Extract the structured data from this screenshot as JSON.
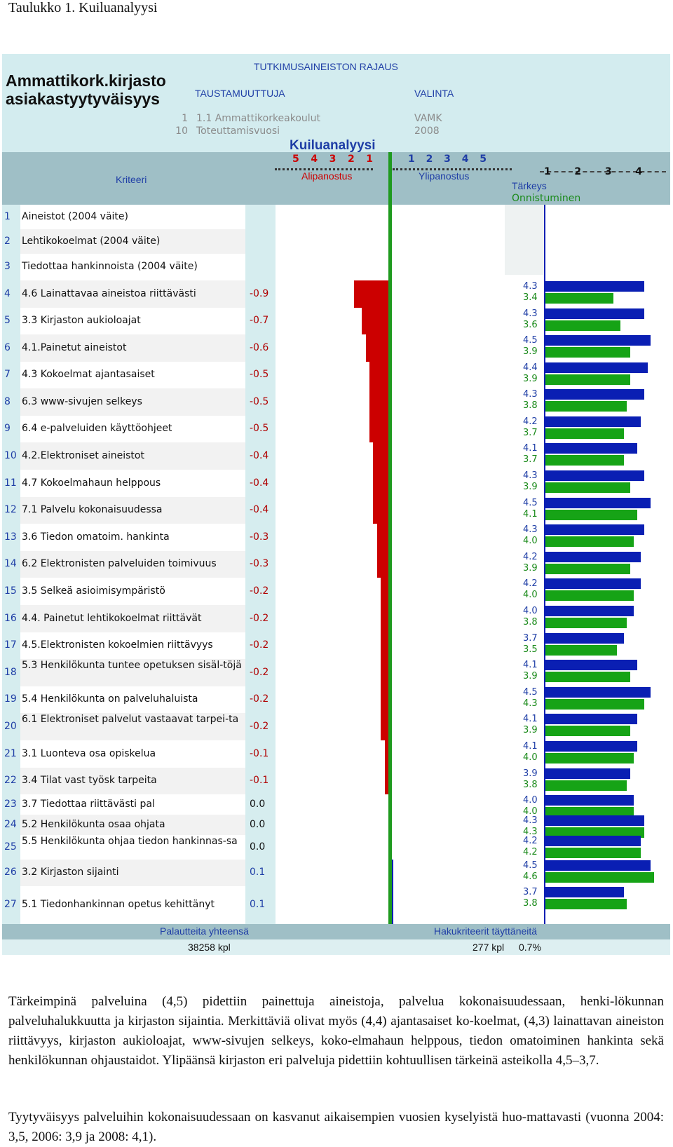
{
  "caption": "Taulukko 1. Kuiluanalyysi",
  "header": {
    "title_line1": "Ammattikork.kirjasto",
    "title_line2": "asiakastyytyväisyys",
    "rajaus": "TUTKIMUSAINEISTON RAJAUS",
    "taustamuuttuja": "TAUSTAMUUTTUJA",
    "valinta": "VALINTA",
    "filters": [
      {
        "num": "1",
        "name": "1.1 Ammattikorkeakoulut",
        "value": "VAMK"
      },
      {
        "num": "10",
        "name": "Toteuttamisvuosi",
        "value": "2008"
      }
    ],
    "kuiluanalyysi": "Kuiluanalyysi",
    "kriteeri": "Kriteeri",
    "alipanostus": "Alipanostus",
    "ylipanostus": "Ylipanostus",
    "tarkeys": "Tärkeys",
    "onnistuminen": "Onnistuminen",
    "left_scale": [
      "5",
      "4",
      "3",
      "2",
      "1"
    ],
    "mid_scale": [
      "1",
      "2",
      "3",
      "4",
      "5"
    ],
    "right_scale": [
      "1",
      "2",
      "3",
      "4"
    ]
  },
  "colors": {
    "under": "#cc0000",
    "axis": "#1f9a1f",
    "importance": "#0a1fb3",
    "satisfaction": "#16a316"
  },
  "rows": [
    {
      "num": "1",
      "label": "Aineistot (2004 väite)",
      "gap": null,
      "importance": null,
      "satisfaction": null
    },
    {
      "num": "2",
      "label": "Lehtikokoelmat (2004 väite)",
      "gap": null,
      "importance": null,
      "satisfaction": null
    },
    {
      "num": "3",
      "label": "Tiedottaa hankinnoista (2004 väite)",
      "gap": null,
      "importance": null,
      "satisfaction": null
    },
    {
      "num": "4",
      "label": "4.6 Lainattavaa aineistoa riittävästi",
      "gap": "-0.9",
      "importance": "4.3",
      "satisfaction": "3.4"
    },
    {
      "num": "5",
      "label": "3.3 Kirjaston aukioloajat",
      "gap": "-0.7",
      "importance": "4.3",
      "satisfaction": "3.6"
    },
    {
      "num": "6",
      "label": "4.1.Painetut aineistot",
      "gap": "-0.6",
      "importance": "4.5",
      "satisfaction": "3.9"
    },
    {
      "num": "7",
      "label": "4.3 Kokoelmat ajantasaiset",
      "gap": "-0.5",
      "importance": "4.4",
      "satisfaction": "3.9"
    },
    {
      "num": "8",
      "label": "6.3 www-sivujen selkeys",
      "gap": "-0.5",
      "importance": "4.3",
      "satisfaction": "3.8"
    },
    {
      "num": "9",
      "label": "6.4 e-palveluiden käyttöohjeet",
      "gap": "-0.5",
      "importance": "4.2",
      "satisfaction": "3.7"
    },
    {
      "num": "10",
      "label": "4.2.Elektroniset aineistot",
      "gap": "-0.4",
      "importance": "4.1",
      "satisfaction": "3.7"
    },
    {
      "num": "11",
      "label": "4.7 Kokoelmahaun helppous",
      "gap": "-0.4",
      "importance": "4.3",
      "satisfaction": "3.9"
    },
    {
      "num": "12",
      "label": "7.1 Palvelu kokonaisuudessa",
      "gap": "-0.4",
      "importance": "4.5",
      "satisfaction": "4.1"
    },
    {
      "num": "13",
      "label": "3.6 Tiedon omatoim. hankinta",
      "gap": "-0.3",
      "importance": "4.3",
      "satisfaction": "4.0"
    },
    {
      "num": "14",
      "label": "6.2 Elektronisten palveluiden toimivuus",
      "gap": "-0.3",
      "importance": "4.2",
      "satisfaction": "3.9"
    },
    {
      "num": "15",
      "label": "3.5 Selkeä asioimisympäristö",
      "gap": "-0.2",
      "importance": "4.2",
      "satisfaction": "4.0"
    },
    {
      "num": "16",
      "label": "4.4. Painetut lehtikokoelmat riittävät",
      "gap": "-0.2",
      "importance": "4.0",
      "satisfaction": "3.8"
    },
    {
      "num": "17",
      "label": "4.5.Elektronisten kokoelmien riittävyys",
      "gap": "-0.2",
      "importance": "3.7",
      "satisfaction": "3.5"
    },
    {
      "num": "18",
      "label": "5.3 Henkilökunta tuntee opetuksen sisäl-töjä",
      "gap": "-0.2",
      "importance": "4.1",
      "satisfaction": "3.9"
    },
    {
      "num": "19",
      "label": "5.4 Henkilökunta on palveluhaluista",
      "gap": "-0.2",
      "importance": "4.5",
      "satisfaction": "4.3"
    },
    {
      "num": "20",
      "label": "6.1 Elektroniset palvelut vastaavat tarpei-ta",
      "gap": "-0.2",
      "importance": "4.1",
      "satisfaction": "3.9"
    },
    {
      "num": "21",
      "label": "3.1 Luonteva osa opiskelua",
      "gap": "-0.1",
      "importance": "4.1",
      "satisfaction": "4.0"
    },
    {
      "num": "22",
      "label": "3.4 Tilat vast työsk tarpeita",
      "gap": "-0.1",
      "importance": "3.9",
      "satisfaction": "3.8"
    },
    {
      "num": "23",
      "label": "3.7 Tiedottaa riittävästi pal",
      "gap": "0.0",
      "importance": "4.0",
      "satisfaction": "4.0"
    },
    {
      "num": "24",
      "label": "5.2 Henkilökunta osaa ohjata",
      "gap": "0.0",
      "importance": "4.3",
      "satisfaction": "4.3"
    },
    {
      "num": "25",
      "label": "5.5 Henkilökunta ohjaa tiedon hankinnas-sa",
      "gap": "0.0",
      "importance": "4.2",
      "satisfaction": "4.2"
    },
    {
      "num": "26",
      "label": "3.2 Kirjaston sijainti",
      "gap": "0.1",
      "importance": "4.5",
      "satisfaction": "4.6"
    },
    {
      "num": "27",
      "label": "5.1 Tiedonhankinnan opetus kehittänyt",
      "gap": "0.1",
      "importance": "3.7",
      "satisfaction": "3.8"
    }
  ],
  "footer": {
    "palautteita_label": "Palautteita yhteensä",
    "palautteita_value": "38258 kpl",
    "hakukriteerit_label": "Hakukriteerit täyttäneitä",
    "hakukriteerit_value": "277 kpl",
    "hakukriteerit_pct": "0.7%"
  },
  "text": {
    "paragraph1": "Tärkeimpinä palveluina (4,5) pidettiin painettuja aineistoja, palvelua kokonaisuudessaan, henki-lökunnan palveluhalukkuutta ja kirjaston sijaintia. Merkittäviä olivat myös (4,4) ajantasaiset ko-koelmat, (4,3) lainattavan aineiston riittävyys, kirjaston aukioloajat, www-sivujen selkeys, koko-elmahaun helppous, tiedon omatoiminen hankinta sekä henkilökunnan ohjaustaidot. Ylipäänsä kirjaston eri palveluja pidettiin kohtuullisen tärkeinä asteikolla 4,5–3,7.",
    "paragraph2": "Tyytyväisyys palveluihin kokonaisuudessaan on kasvanut aikaisempien vuosien kyselyistä huo-mattavasti (vuonna 2004: 3,5, 2006: 3,9 ja 2008: 4,1)."
  }
}
